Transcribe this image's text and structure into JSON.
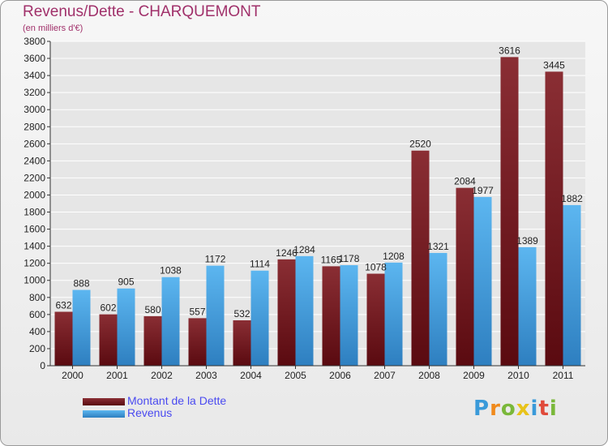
{
  "header": {
    "title": "Revenus/Dette - CHARQUEMONT",
    "subtitle": "(en milliers d'€)"
  },
  "colors": {
    "title": "#a0306a",
    "debt": "#7a1e24",
    "revenue": "#4aa6e4",
    "legend_text": "#4a4af0",
    "grid": "#ffffff"
  },
  "chart_data": {
    "type": "bar",
    "title": "Revenus/Dette - CHARQUEMONT",
    "ylabel": "(en milliers d'€)",
    "xlabel": "",
    "categories": [
      "2000",
      "2001",
      "2002",
      "2003",
      "2004",
      "2005",
      "2006",
      "2007",
      "2008",
      "2009",
      "2010",
      "2011"
    ],
    "series": [
      {
        "name": "Montant de la Dette",
        "values": [
          632,
          602,
          580,
          557,
          532,
          1246,
          1165,
          1078,
          2520,
          2084,
          3616,
          3445
        ]
      },
      {
        "name": "Revenus",
        "values": [
          888,
          905,
          1038,
          1172,
          1114,
          1284,
          1178,
          1208,
          1321,
          1977,
          1389,
          1882
        ]
      }
    ],
    "ylim": [
      0,
      3800
    ],
    "yticks": [
      0,
      200,
      400,
      600,
      800,
      1000,
      1200,
      1400,
      1600,
      1800,
      2000,
      2200,
      2400,
      2600,
      2800,
      3000,
      3200,
      3400,
      3600,
      3800
    ],
    "grid": true,
    "legend_position": "bottom-left"
  },
  "legend": {
    "debt_label": "Montant de la Dette",
    "revenue_label": "Revenus"
  },
  "logo": {
    "letters": [
      "P",
      "r",
      "o",
      "x",
      "i",
      "t",
      "i"
    ],
    "letter_colors": [
      "#3a9ad9",
      "#f08a1c",
      "#7ab83a",
      "#e8c31a",
      "#3a9ad9",
      "#e04a3a",
      "#7ab83a"
    ]
  }
}
